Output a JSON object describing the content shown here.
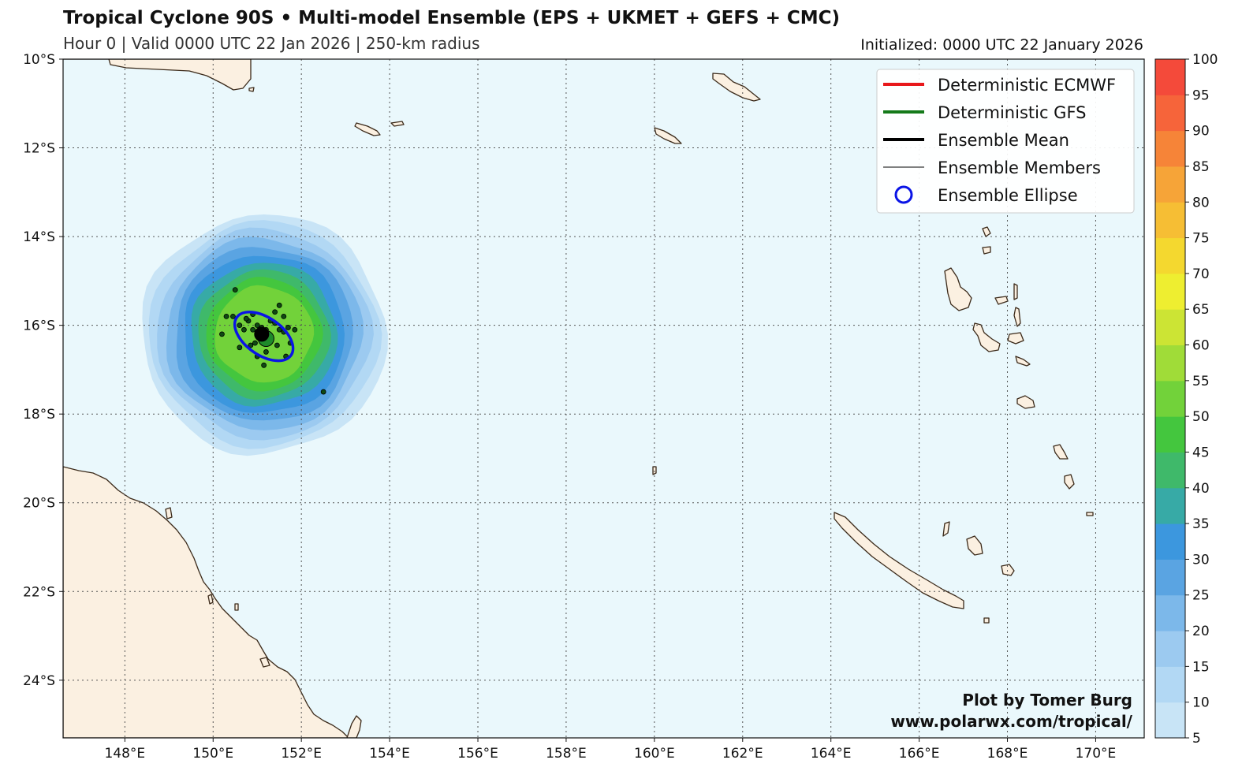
{
  "header": {
    "title": "Tropical Cyclone 90S • Multi-model Ensemble (EPS + UKMET + GEFS + CMC)",
    "subtitle": "Hour 0 | Valid 0000 UTC 22 Jan 2026 | 250-km radius",
    "initialized": "Initialized: 0000 UTC 22 January 2026"
  },
  "map": {
    "lon_range": [
      146.6,
      171.1
    ],
    "lat_range": [
      -25.3,
      -10.0
    ],
    "lon_ticks": [
      {
        "v": 148,
        "label": "148°E"
      },
      {
        "v": 150,
        "label": "150°E"
      },
      {
        "v": 152,
        "label": "152°E"
      },
      {
        "v": 154,
        "label": "154°E"
      },
      {
        "v": 156,
        "label": "156°E"
      },
      {
        "v": 158,
        "label": "158°E"
      },
      {
        "v": 160,
        "label": "160°E"
      },
      {
        "v": 162,
        "label": "162°E"
      },
      {
        "v": 164,
        "label": "164°E"
      },
      {
        "v": 166,
        "label": "166°E"
      },
      {
        "v": 168,
        "label": "168°E"
      },
      {
        "v": 170,
        "label": "170°E"
      }
    ],
    "lat_ticks": [
      {
        "v": -10,
        "label": "10°S"
      },
      {
        "v": -12,
        "label": "12°S"
      },
      {
        "v": -14,
        "label": "14°S"
      },
      {
        "v": -16,
        "label": "16°S"
      },
      {
        "v": -18,
        "label": "18°S"
      },
      {
        "v": -20,
        "label": "20°S"
      },
      {
        "v": -22,
        "label": "22°S"
      },
      {
        "v": -24,
        "label": "24°S"
      }
    ],
    "ocean_color": "#eaf8fc",
    "land_color": "#fbf0e1",
    "coast_color": "#3b2a1a",
    "grid": true
  },
  "strike_probability": {
    "center_lon": 151.15,
    "center_lat": -16.2,
    "levels": [
      5,
      10,
      15,
      20,
      25,
      30,
      35,
      40,
      45,
      50
    ]
  },
  "ensemble": {
    "mean": {
      "lon": 151.1,
      "lat": -16.2
    },
    "gfs": {
      "lon": 151.2,
      "lat": -16.3
    },
    "ellipse": {
      "lon": 151.15,
      "lat": -16.25,
      "semi_major_deg": 0.75,
      "semi_minor_deg": 0.42,
      "tilt_deg": 35
    },
    "members": [
      [
        150.5,
        -15.2
      ],
      [
        150.3,
        -15.8
      ],
      [
        150.45,
        -15.8
      ],
      [
        150.2,
        -16.2
      ],
      [
        150.6,
        -16.0
      ],
      [
        150.7,
        -16.1
      ],
      [
        150.8,
        -15.9
      ],
      [
        150.9,
        -15.75
      ],
      [
        151.0,
        -16.0
      ],
      [
        151.1,
        -16.05
      ],
      [
        151.2,
        -16.1
      ],
      [
        151.3,
        -15.9
      ],
      [
        151.4,
        -15.95
      ],
      [
        151.5,
        -16.1
      ],
      [
        151.6,
        -16.15
      ],
      [
        151.7,
        -16.05
      ],
      [
        151.85,
        -16.1
      ],
      [
        151.6,
        -15.8
      ],
      [
        151.4,
        -15.7
      ],
      [
        151.5,
        -15.55
      ],
      [
        151.75,
        -16.4
      ],
      [
        151.65,
        -16.7
      ],
      [
        151.2,
        -16.6
      ],
      [
        151.15,
        -16.9
      ],
      [
        151.0,
        -16.7
      ],
      [
        150.85,
        -16.45
      ],
      [
        150.6,
        -16.5
      ],
      [
        150.95,
        -16.4
      ],
      [
        151.3,
        -16.35
      ],
      [
        150.75,
        -15.85
      ],
      [
        152.5,
        -17.5
      ],
      [
        151.05,
        -16.25
      ],
      [
        150.9,
        -16.1
      ],
      [
        151.45,
        -16.45
      ]
    ]
  },
  "legend": {
    "items": [
      {
        "label": "Deterministic ECMWF",
        "color": "#e8181b",
        "kind": "line-thick"
      },
      {
        "label": "Deterministic GFS",
        "color": "#147a1a",
        "kind": "line-thick"
      },
      {
        "label": "Ensemble Mean",
        "color": "#000000",
        "kind": "line-thick"
      },
      {
        "label": "Ensemble Members",
        "color": "#000000",
        "kind": "line-thin"
      },
      {
        "label": "Ensemble Ellipse",
        "color": "#0a14e6",
        "kind": "circle"
      }
    ]
  },
  "colorbar": {
    "labels": [
      "5",
      "10",
      "15",
      "20",
      "25",
      "30",
      "35",
      "40",
      "45",
      "50",
      "55",
      "60",
      "65",
      "70",
      "75",
      "80",
      "85",
      "90",
      "95",
      "100"
    ],
    "colors": [
      "#c8e4f6",
      "#b2d8f4",
      "#9ccaf0",
      "#7cb8ea",
      "#5aa4e2",
      "#3c97de",
      "#37aaa6",
      "#3fb96a",
      "#44c63e",
      "#72d23a",
      "#a0dc38",
      "#cce434",
      "#eeee30",
      "#f4d82f",
      "#f6be34",
      "#f6a438",
      "#f68438",
      "#f6643a",
      "#f44a3a",
      "#f0343a"
    ]
  },
  "credit": {
    "line1": "Plot by Tomer Burg",
    "line2": "www.polarwx.com/tropical/"
  }
}
